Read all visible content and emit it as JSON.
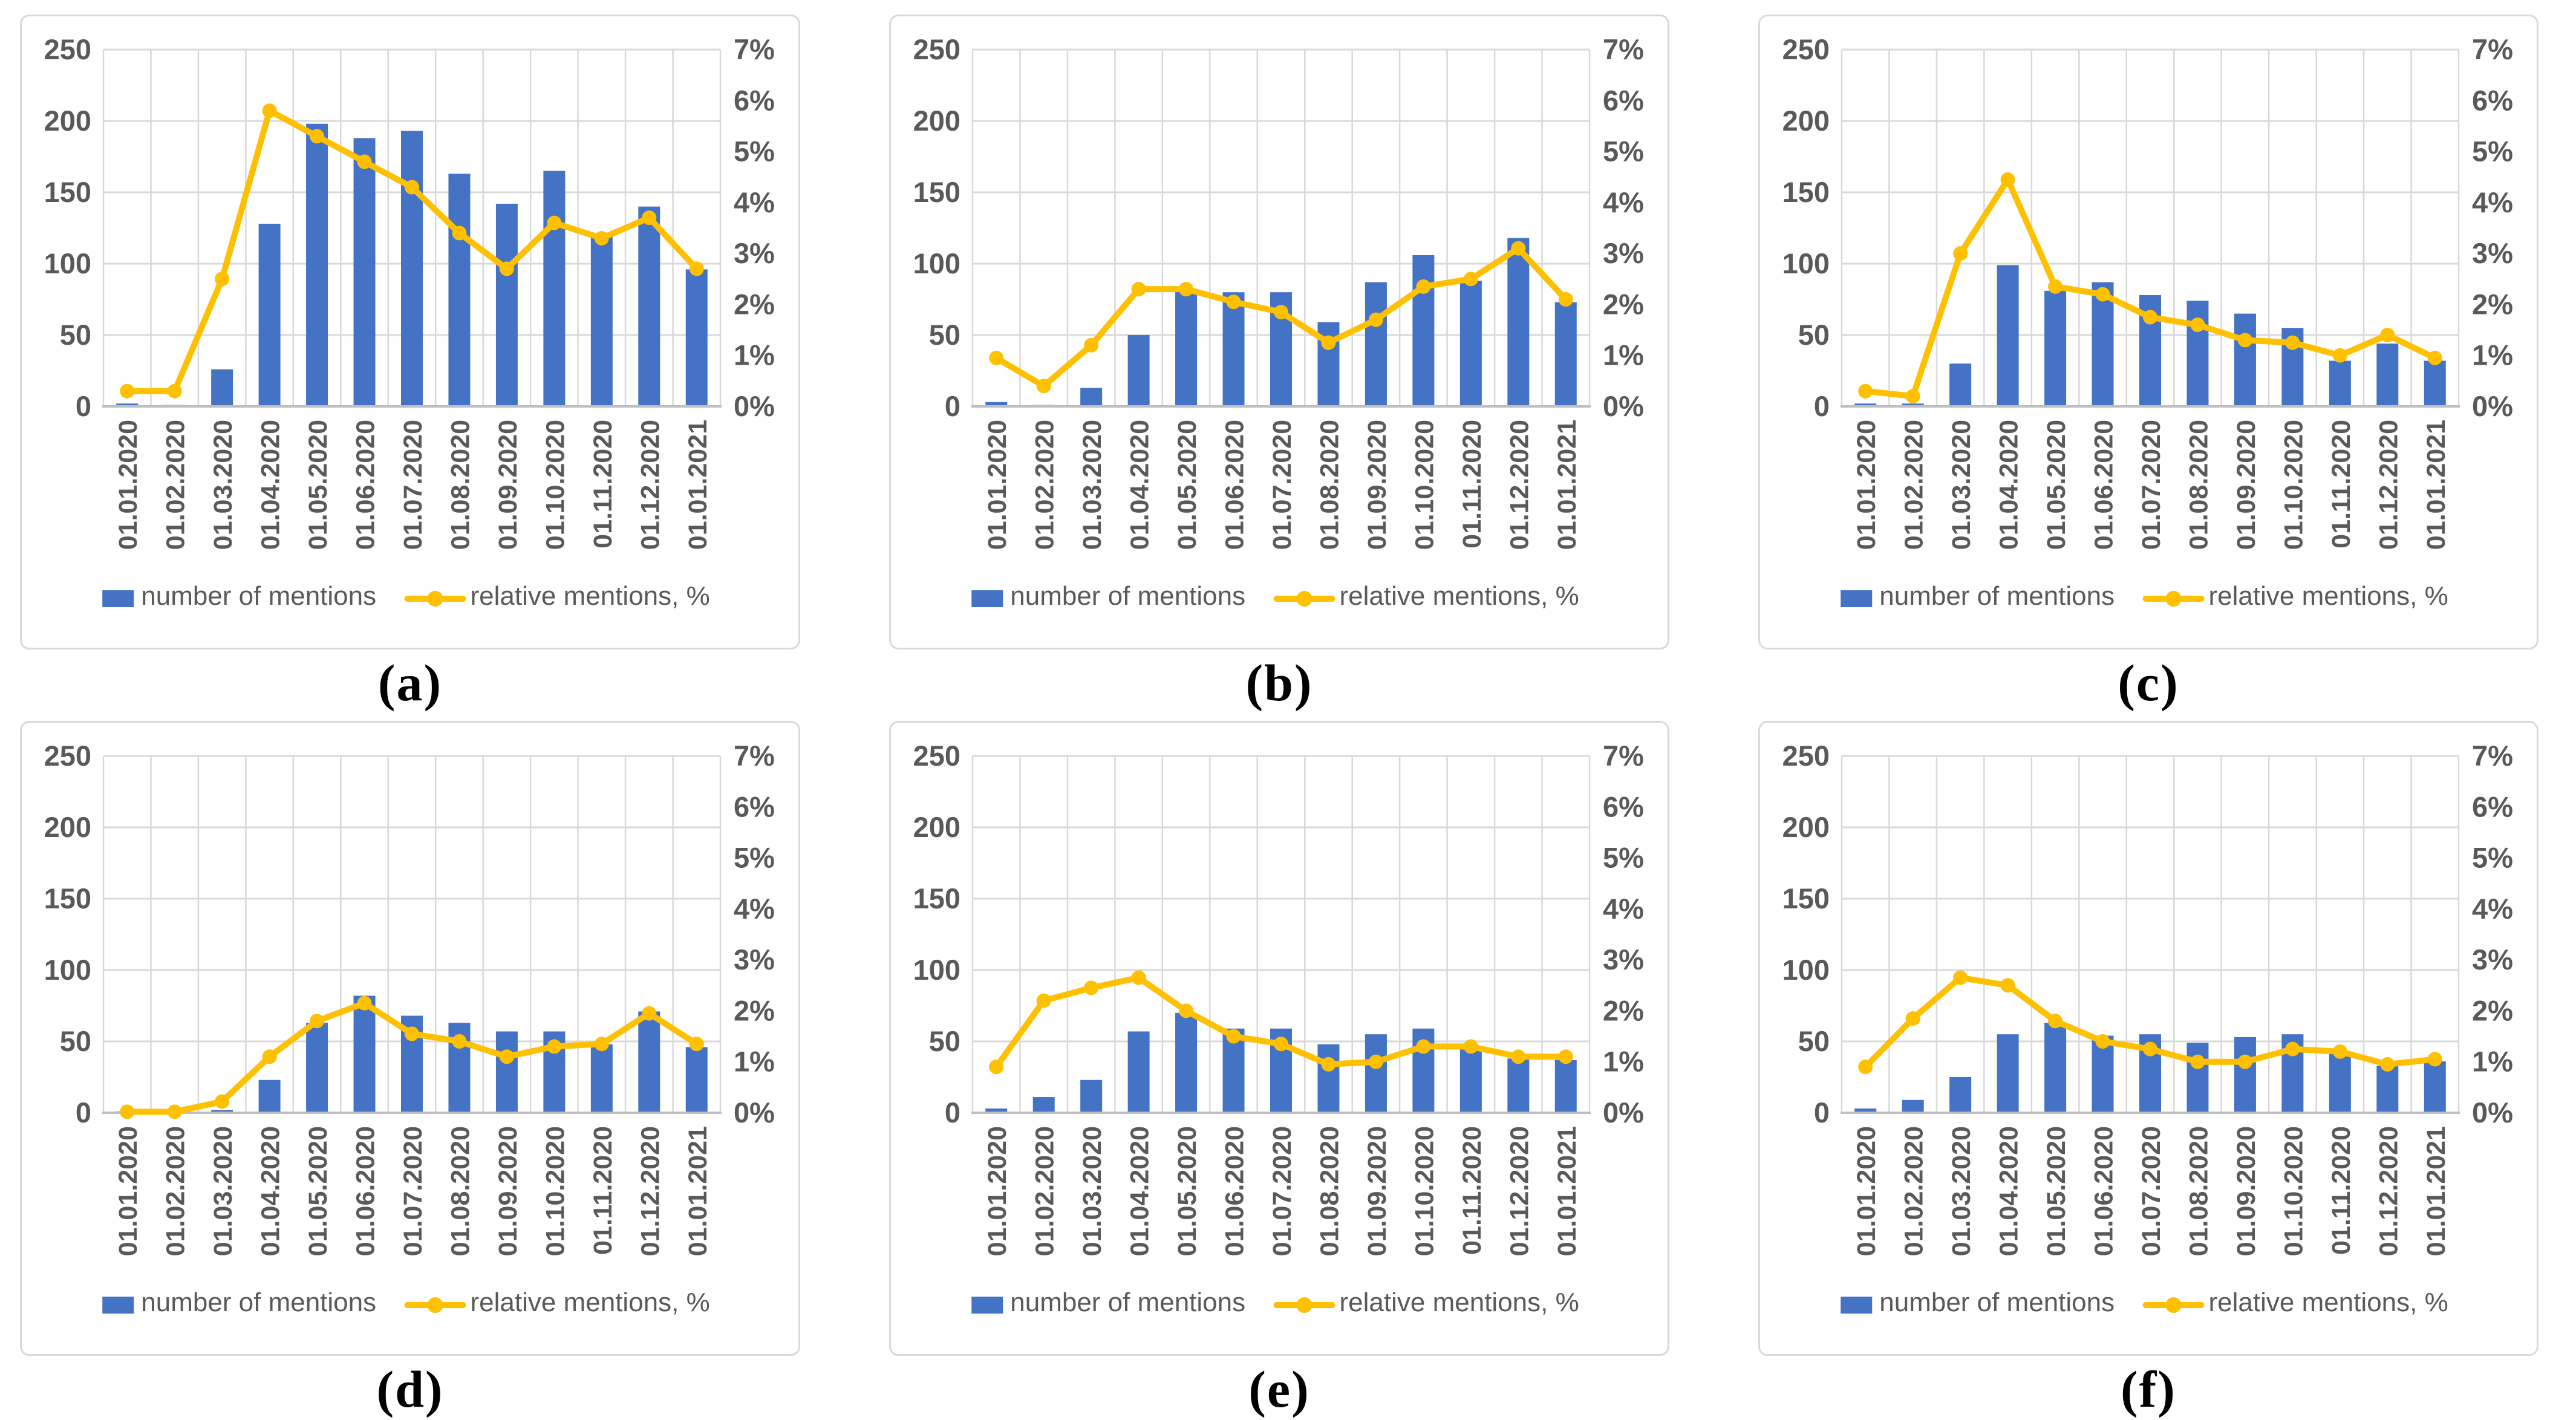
{
  "figure": {
    "legend": {
      "bar_label": "number of mentions",
      "line_label": "relative mentions, %"
    },
    "left_axis_ticks": [
      "250",
      "200",
      "150",
      "100",
      "50",
      "0"
    ],
    "right_axis_ticks": [
      "7%",
      "6%",
      "5%",
      "4%",
      "3%",
      "2%",
      "1%",
      "0%"
    ],
    "colors": {
      "bar": "#4472C4",
      "line": "#FFC000",
      "axis_text": "#595959",
      "gridline": "#D9D9D9",
      "axis_line": "#BFBFBF",
      "panel_border": "#D9D9D9",
      "background": "#FFFFFF",
      "caption_text": "#000000"
    }
  },
  "chart_data": [
    {
      "id": "a",
      "caption": "(a)",
      "type": "bar",
      "categories": [
        "01.01.2020",
        "01.02.2020",
        "01.03.2020",
        "01.04.2020",
        "01.05.2020",
        "01.06.2020",
        "01.07.2020",
        "01.08.2020",
        "01.09.2020",
        "01.10.2020",
        "01.11.2020",
        "01.12.2020",
        "01.01.2021"
      ],
      "series": [
        {
          "name": "number of mentions",
          "type": "bar",
          "axis": "left",
          "values": [
            2,
            1,
            26,
            128,
            198,
            188,
            193,
            163,
            142,
            165,
            120,
            140,
            96
          ]
        },
        {
          "name": "relative mentions, %",
          "type": "line",
          "axis": "right",
          "values": [
            0.3,
            0.3,
            2.5,
            5.8,
            5.3,
            4.8,
            4.3,
            3.4,
            2.7,
            3.6,
            3.3,
            3.7,
            2.7
          ]
        }
      ],
      "ylim_left": [
        0,
        250
      ],
      "ylim_right": [
        0,
        7
      ],
      "grid": true,
      "legend_position": "bottom"
    },
    {
      "id": "b",
      "caption": "(b)",
      "type": "bar",
      "categories": [
        "01.01.2020",
        "01.02.2020",
        "01.03.2020",
        "01.04.2020",
        "01.05.2020",
        "01.06.2020",
        "01.07.2020",
        "01.08.2020",
        "01.09.2020",
        "01.10.2020",
        "01.11.2020",
        "01.12.2020",
        "01.01.2021"
      ],
      "series": [
        {
          "name": "number of mentions",
          "type": "bar",
          "axis": "left",
          "values": [
            3,
            1,
            13,
            50,
            82,
            80,
            80,
            59,
            87,
            106,
            88,
            118,
            73
          ]
        },
        {
          "name": "relative mentions, %",
          "type": "line",
          "axis": "right",
          "values": [
            0.95,
            0.4,
            1.2,
            2.3,
            2.3,
            2.05,
            1.85,
            1.25,
            1.7,
            2.35,
            2.5,
            3.1,
            2.1
          ]
        }
      ],
      "ylim_left": [
        0,
        250
      ],
      "ylim_right": [
        0,
        7
      ],
      "grid": true,
      "legend_position": "bottom"
    },
    {
      "id": "c",
      "caption": "(c)",
      "type": "bar",
      "categories": [
        "01.01.2020",
        "01.02.2020",
        "01.03.2020",
        "01.04.2020",
        "01.05.2020",
        "01.06.2020",
        "01.07.2020",
        "01.08.2020",
        "01.09.2020",
        "01.10.2020",
        "01.11.2020",
        "01.12.2020",
        "01.01.2021"
      ],
      "series": [
        {
          "name": "number of mentions",
          "type": "bar",
          "axis": "left",
          "values": [
            2,
            2,
            30,
            99,
            81,
            87,
            78,
            74,
            65,
            55,
            32,
            44,
            32
          ]
        },
        {
          "name": "relative mentions, %",
          "type": "line",
          "axis": "right",
          "values": [
            0.3,
            0.2,
            3.0,
            4.45,
            2.35,
            2.2,
            1.75,
            1.6,
            1.3,
            1.25,
            1.0,
            1.4,
            0.95
          ]
        }
      ],
      "ylim_left": [
        0,
        250
      ],
      "ylim_right": [
        0,
        7
      ],
      "grid": true,
      "legend_position": "bottom"
    },
    {
      "id": "d",
      "caption": "(d)",
      "type": "bar",
      "categories": [
        "01.01.2020",
        "01.02.2020",
        "01.03.2020",
        "01.04.2020",
        "01.05.2020",
        "01.06.2020",
        "01.07.2020",
        "01.08.2020",
        "01.09.2020",
        "01.10.2020",
        "01.11.2020",
        "01.12.2020",
        "01.01.2021"
      ],
      "series": [
        {
          "name": "number of mentions",
          "type": "bar",
          "axis": "left",
          "values": [
            1,
            1,
            2,
            23,
            63,
            82,
            68,
            63,
            57,
            57,
            48,
            71,
            46
          ]
        },
        {
          "name": "relative mentions, %",
          "type": "line",
          "axis": "right",
          "values": [
            0.02,
            0.02,
            0.22,
            1.1,
            1.8,
            2.15,
            1.55,
            1.4,
            1.1,
            1.3,
            1.35,
            1.95,
            1.35
          ]
        }
      ],
      "ylim_left": [
        0,
        250
      ],
      "ylim_right": [
        0,
        7
      ],
      "grid": true,
      "legend_position": "bottom"
    },
    {
      "id": "e",
      "caption": "(e)",
      "type": "bar",
      "categories": [
        "01.01.2020",
        "01.02.2020",
        "01.03.2020",
        "01.04.2020",
        "01.05.2020",
        "01.06.2020",
        "01.07.2020",
        "01.08.2020",
        "01.09.2020",
        "01.10.2020",
        "01.11.2020",
        "01.12.2020",
        "01.01.2021"
      ],
      "series": [
        {
          "name": "number of mentions",
          "type": "bar",
          "axis": "left",
          "values": [
            3,
            11,
            23,
            57,
            70,
            59,
            59,
            48,
            55,
            59,
            47,
            38,
            37
          ]
        },
        {
          "name": "relative mentions, %",
          "type": "line",
          "axis": "right",
          "values": [
            0.9,
            2.2,
            2.45,
            2.65,
            2.0,
            1.5,
            1.35,
            0.95,
            1.0,
            1.3,
            1.3,
            1.1,
            1.1
          ]
        }
      ],
      "ylim_left": [
        0,
        250
      ],
      "ylim_right": [
        0,
        7
      ],
      "grid": true,
      "legend_position": "bottom"
    },
    {
      "id": "f",
      "caption": "(f)",
      "type": "bar",
      "categories": [
        "01.01.2020",
        "01.02.2020",
        "01.03.2020",
        "01.04.2020",
        "01.05.2020",
        "01.06.2020",
        "01.07.2020",
        "01.08.2020",
        "01.09.2020",
        "01.10.2020",
        "01.11.2020",
        "01.12.2020",
        "01.01.2021"
      ],
      "series": [
        {
          "name": "number of mentions",
          "type": "bar",
          "axis": "left",
          "values": [
            3,
            9,
            25,
            55,
            63,
            54,
            55,
            49,
            53,
            55,
            43,
            33,
            36
          ]
        },
        {
          "name": "relative mentions, %",
          "type": "line",
          "axis": "right",
          "values": [
            0.9,
            1.85,
            2.65,
            2.5,
            1.8,
            1.4,
            1.25,
            1.0,
            1.0,
            1.25,
            1.2,
            0.95,
            1.05
          ]
        }
      ],
      "ylim_left": [
        0,
        250
      ],
      "ylim_right": [
        0,
        7
      ],
      "grid": true,
      "legend_position": "bottom"
    }
  ]
}
